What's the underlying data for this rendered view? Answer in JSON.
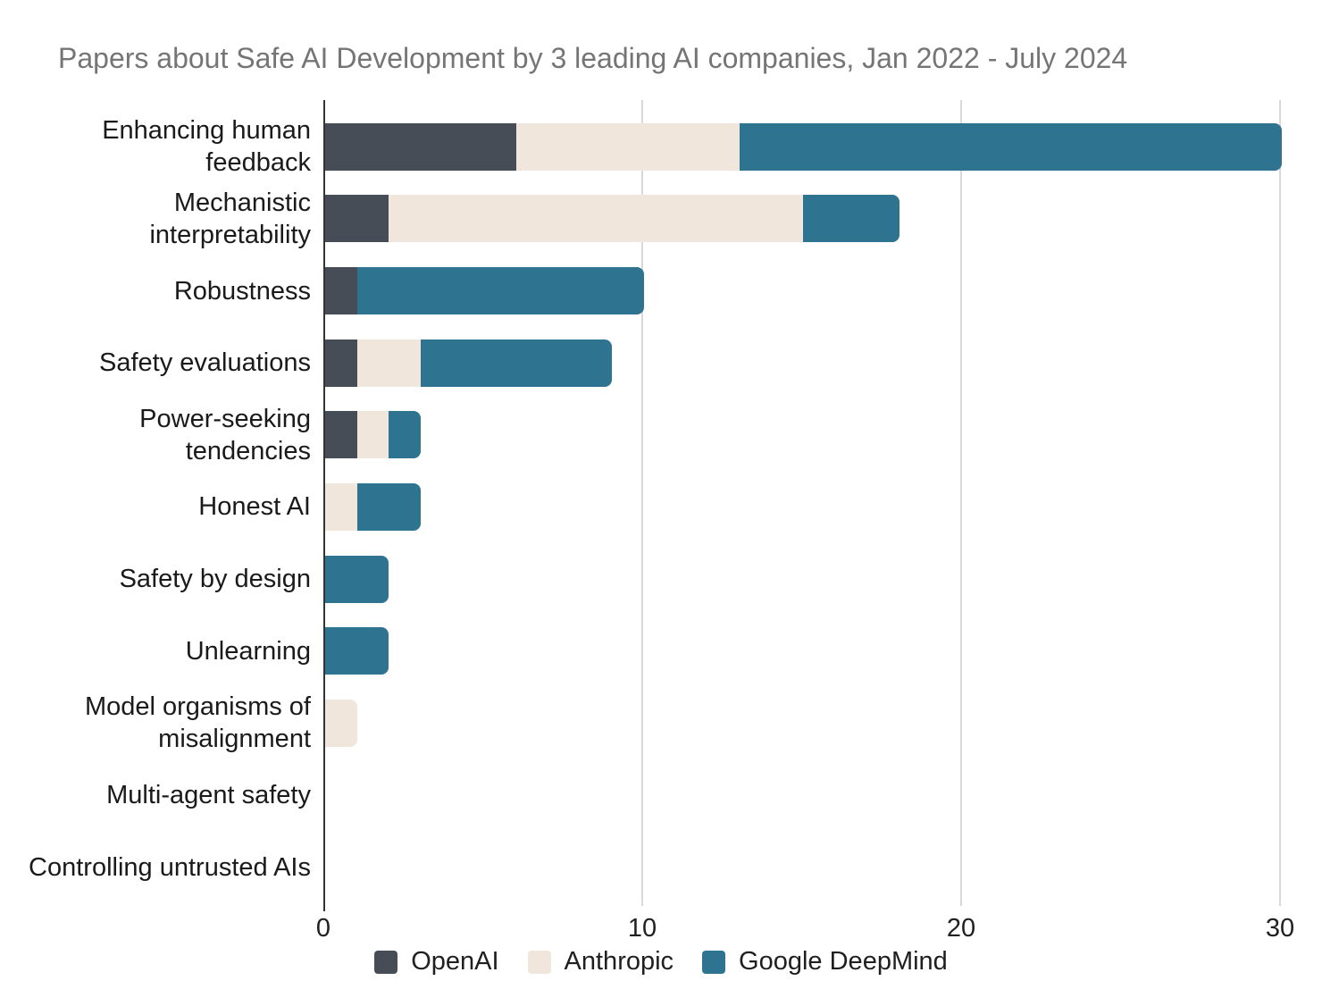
{
  "title": "Papers about Safe AI Development by 3 leading AI companies, Jan 2022 - July 2024",
  "chart_data": {
    "type": "bar",
    "orientation": "horizontal",
    "stacked": true,
    "title": "Papers about Safe AI Development by 3 leading AI companies, Jan 2022 - July 2024",
    "categories": [
      "Enhancing human feedback",
      "Mechanistic interpretability",
      "Robustness",
      "Safety evaluations",
      "Power-seeking tendencies",
      "Honest AI",
      "Safety by design",
      "Unlearning",
      "Model organisms of misalignment",
      "Multi-agent safety",
      "Controlling untrusted AIs"
    ],
    "series": [
      {
        "name": "OpenAI",
        "color": "#474d57",
        "values": [
          6,
          2,
          1,
          1,
          1,
          0,
          0,
          0,
          0,
          0,
          0
        ]
      },
      {
        "name": "Anthropic",
        "color": "#f0e6dc",
        "values": [
          7,
          13,
          0,
          2,
          1,
          1,
          0,
          0,
          1,
          0,
          0
        ]
      },
      {
        "name": "Google DeepMind",
        "color": "#2e7390",
        "values": [
          17,
          3,
          9,
          6,
          1,
          2,
          2,
          2,
          0,
          0,
          0
        ]
      }
    ],
    "x_tick_values": [
      0,
      10,
      20,
      30
    ],
    "x_tick_labels": [
      "0",
      "10",
      "20",
      "30"
    ],
    "xlim": [
      0,
      31
    ],
    "grid": true,
    "legend_position": "bottom"
  },
  "colors": {
    "title_text": "#757575",
    "axis_line": "#333333",
    "gridline": "#d9d9d9",
    "label_text": "#1a1a1a",
    "background": "#ffffff"
  }
}
